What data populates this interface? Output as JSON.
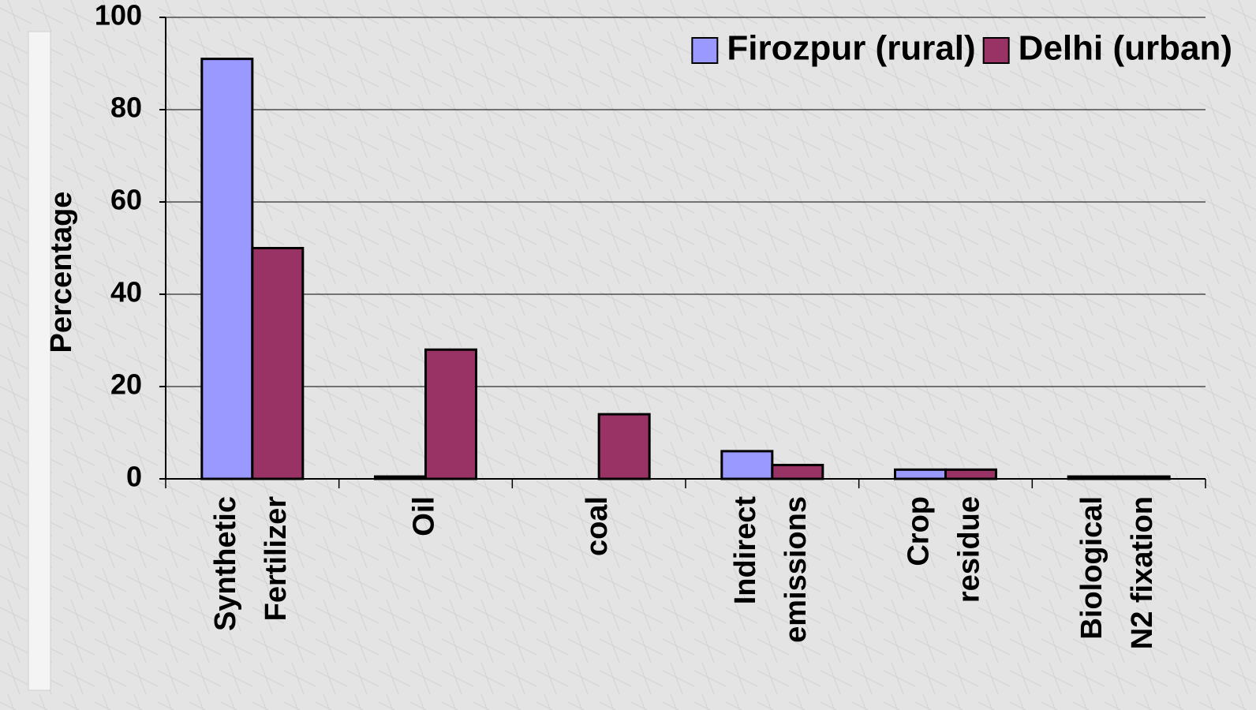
{
  "chart_data": {
    "type": "bar",
    "categories": [
      "Synthetic\nFertilizer",
      "Oil",
      "coal",
      "Indirect\nemissions",
      "Crop\nresidue",
      "Biological\nN2 fixation"
    ],
    "series": [
      {
        "name": "Firozpur (rural)",
        "color": "#9999ff",
        "values": [
          91,
          0.5,
          0,
          6,
          2,
          0.5
        ]
      },
      {
        "name": "Delhi (urban)",
        "color": "#993366",
        "values": [
          50,
          28,
          14,
          3,
          2,
          0.5
        ]
      }
    ],
    "y_label": "Percentage",
    "ylim": [
      0,
      100
    ],
    "yticks": [
      0,
      20,
      40,
      60,
      80,
      100
    ],
    "grid": true,
    "legend": "top-right"
  }
}
